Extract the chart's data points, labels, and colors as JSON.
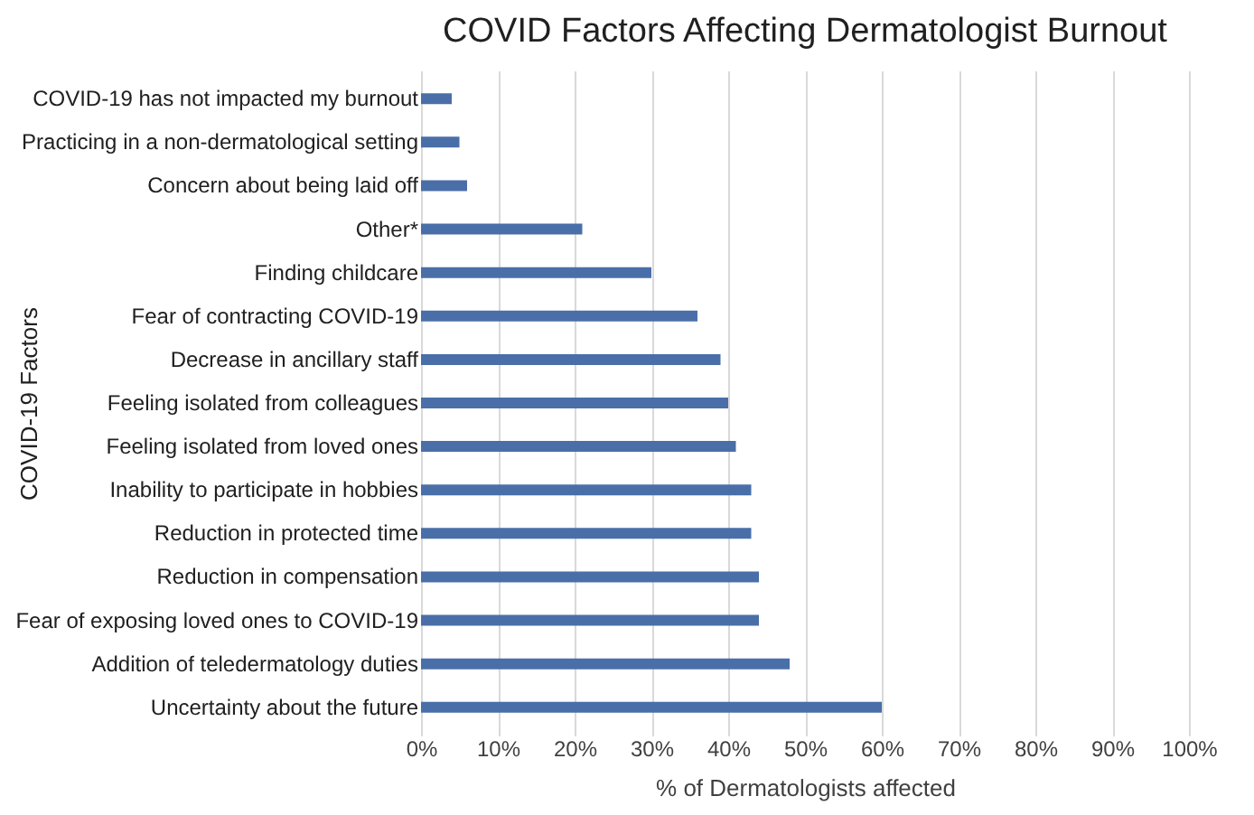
{
  "chart_data": {
    "type": "bar",
    "orientation": "horizontal",
    "title": "COVID Factors Affecting Dermatologist Burnout",
    "xlabel": "% of Dermatologists affected",
    "ylabel": "COVID-19 Factors",
    "categories": [
      "COVID-19 has not impacted my burnout",
      "Practicing in a non-dermatological setting",
      "Concern about being laid off",
      "Other*",
      "Finding childcare",
      "Fear of contracting COVID-19",
      "Decrease in ancillary staff",
      "Feeling isolated from colleagues",
      "Feeling isolated from loved ones",
      "Inability to participate   in hobbies",
      "Reduction in protected time",
      "Reduction in compensation",
      "Fear of exposing loved ones to COVID-19",
      "Addition of teledermatology duties",
      "Uncertainty about the future"
    ],
    "values": [
      4,
      5,
      6,
      21,
      30,
      36,
      39,
      40,
      41,
      43,
      43,
      44,
      44,
      48,
      60
    ],
    "color": "#4a6fa8",
    "xlim": [
      0,
      100
    ],
    "xticks": [
      {
        "value": 0,
        "label": "0%"
      },
      {
        "value": 10,
        "label": "10%"
      },
      {
        "value": 20,
        "label": "20%"
      },
      {
        "value": 30,
        "label": "30%"
      },
      {
        "value": 40,
        "label": "40%"
      },
      {
        "value": 50,
        "label": "50%"
      },
      {
        "value": 60,
        "label": "60%"
      },
      {
        "value": 70,
        "label": "70%"
      },
      {
        "value": 80,
        "label": "80%"
      },
      {
        "value": 90,
        "label": "90%"
      },
      {
        "value": 100,
        "label": "100%"
      }
    ],
    "grid": "x"
  }
}
